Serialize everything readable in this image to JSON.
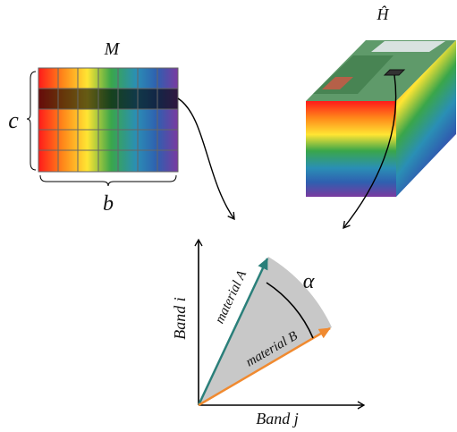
{
  "matrix": {
    "label": "M",
    "rows_label": "c",
    "cols_label": "b"
  },
  "cube": {
    "label": "Ĥ"
  },
  "plot": {
    "x_axis": "Band j",
    "y_axis": "Band i",
    "angle": "α",
    "vectors": [
      "material A",
      "material B"
    ]
  }
}
